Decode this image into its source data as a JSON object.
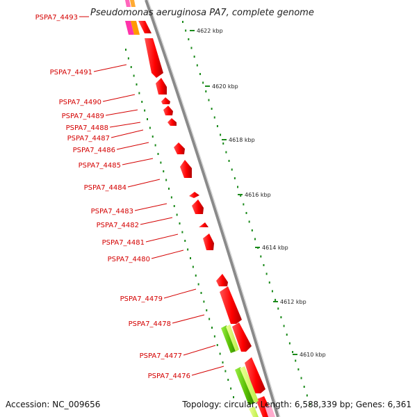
{
  "title": "Pseudomonas aeruginosa PA7, complete genome",
  "footer": {
    "accession": "Accession: NC_009656",
    "summary": "Topology: circular; Length: 6,588,339 bp; Genes: 6,361"
  },
  "gene_labels": [
    "PSPA7_4493",
    "PSPA7_4491",
    "PSPA7_4490",
    "PSPA7_4489",
    "PSPA7_4488",
    "PSPA7_4487",
    "PSPA7_4486",
    "PSPA7_4485",
    "PSPA7_4484",
    "PSPA7_4483",
    "PSPA7_4482",
    "PSPA7_4481",
    "PSPA7_4480",
    "PSPA7_4479",
    "PSPA7_4478",
    "PSPA7_4477",
    "PSPA7_4476"
  ],
  "kbp_labels": [
    "4622 kbp",
    "4620 kbp",
    "4618 kbp",
    "4616 kbp",
    "4614 kbp",
    "4612 kbp",
    "4610 kbp"
  ],
  "colors": {
    "gene": "#ff0000",
    "gene_dark": "#c40000",
    "label": "#d40000",
    "backbone": "#8a8a8a",
    "ruler": "#1a8a1a",
    "green_gene": "#66cc00",
    "light_green": "#ccff66",
    "magenta": "#ff33aa",
    "orange": "#ff9900"
  }
}
